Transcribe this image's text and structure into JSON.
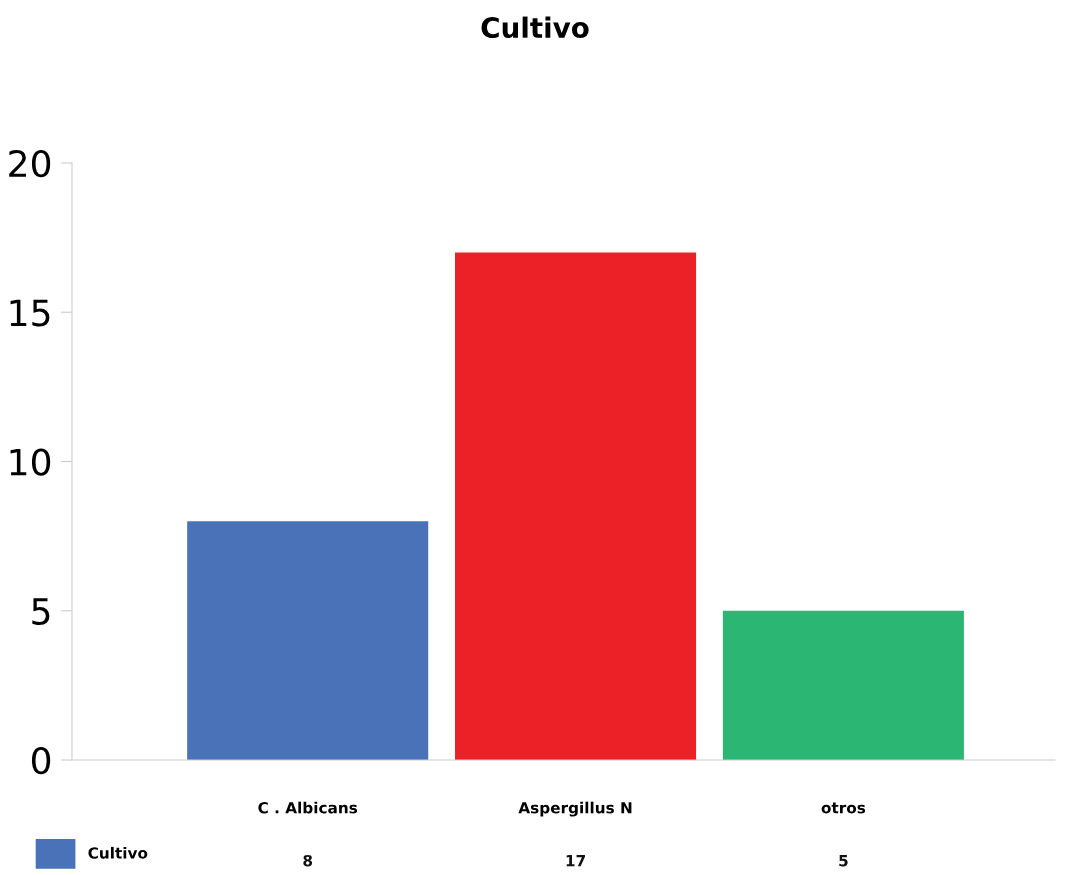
{
  "chart_data": {
    "type": "bar",
    "title": "Cultivo",
    "categories": [
      "C . Albicans",
      "Aspergillus N",
      "otros"
    ],
    "series": [
      {
        "name": "Cultivo",
        "color": "#4a72b8",
        "colors": [
          "#4a72b8",
          "#ec2027",
          "#2bb673"
        ],
        "values": [
          8,
          17,
          5
        ]
      }
    ],
    "ylim": [
      0,
      20
    ],
    "yticks": [
      0,
      5,
      10,
      15,
      20
    ],
    "grid": false,
    "legend": "bottom left",
    "data_labels": true
  }
}
